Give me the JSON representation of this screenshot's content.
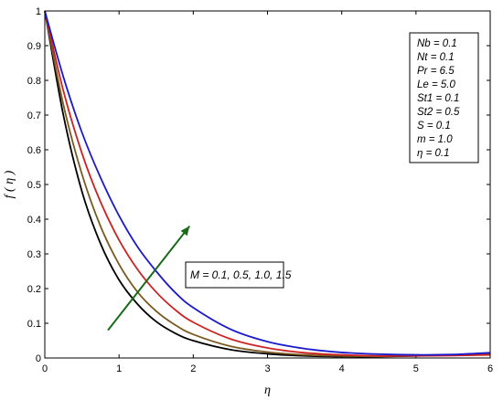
{
  "chart_data": {
    "type": "line",
    "xlabel": "η",
    "ylabel": "f ( η )",
    "xlim": [
      0,
      6
    ],
    "ylim": [
      0,
      1
    ],
    "x_ticks": [
      "0",
      "1",
      "2",
      "3",
      "4",
      "5",
      "6"
    ],
    "y_ticks": [
      "0",
      "0.1",
      "0.2",
      "0.3",
      "0.4",
      "0.5",
      "0.6",
      "0.7",
      "0.8",
      "0.9",
      "1"
    ],
    "grid": false,
    "x": [
      0,
      0.25,
      0.5,
      0.75,
      1,
      1.25,
      1.5,
      1.75,
      2,
      2.5,
      3,
      3.5,
      4,
      4.5,
      5,
      5.5,
      6
    ],
    "series": [
      {
        "color": "#000000",
        "values": [
          1,
          0.7,
          0.48,
          0.33,
          0.225,
          0.155,
          0.105,
          0.072,
          0.05,
          0.024,
          0.012,
          0.006,
          0.004,
          0.004,
          0.006,
          0.009,
          0.012
        ]
      },
      {
        "color": "#7a5a20",
        "values": [
          1,
          0.73,
          0.53,
          0.38,
          0.27,
          0.19,
          0.135,
          0.096,
          0.068,
          0.034,
          0.017,
          0.009,
          0.006,
          0.005,
          0.007,
          0.009,
          0.011
        ]
      },
      {
        "color": "#cc2222",
        "values": [
          1,
          0.77,
          0.59,
          0.45,
          0.34,
          0.255,
          0.19,
          0.14,
          0.103,
          0.055,
          0.029,
          0.015,
          0.009,
          0.006,
          0.006,
          0.007,
          0.009
        ]
      },
      {
        "color": "#1a1acc",
        "values": [
          1,
          0.81,
          0.65,
          0.52,
          0.41,
          0.32,
          0.25,
          0.19,
          0.145,
          0.083,
          0.047,
          0.027,
          0.016,
          0.011,
          0.009,
          0.01,
          0.015
        ]
      }
    ],
    "parameter_box": [
      "Nb = 0.1",
      "Nt = 0.1",
      "Pr = 6.5",
      "Le = 5.0",
      "St1 = 0.1",
      "St2 = 0.5",
      "S = 0.1",
      "m = 1.0",
      "η = 0.1"
    ],
    "annotation": "M = 0.1, 0.5, 1.0, 1.5",
    "arrow_color": "#1a6a1a",
    "arrow": {
      "from": [
        0.85,
        0.08
      ],
      "to": [
        1.95,
        0.38
      ]
    }
  }
}
